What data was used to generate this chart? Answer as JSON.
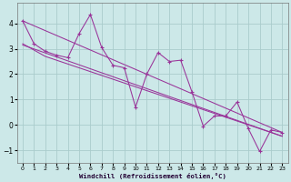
{
  "xlabel": "Windchill (Refroidissement éolien,°C)",
  "bg_color": "#cce8e8",
  "grid_color": "#aacccc",
  "line_color": "#993399",
  "xlim": [
    -0.5,
    23.5
  ],
  "ylim": [
    -1.5,
    4.8
  ],
  "xticks": [
    0,
    1,
    2,
    3,
    4,
    5,
    6,
    7,
    8,
    9,
    10,
    11,
    12,
    13,
    14,
    15,
    16,
    17,
    18,
    19,
    20,
    21,
    22,
    23
  ],
  "yticks": [
    -1,
    0,
    1,
    2,
    3,
    4
  ],
  "series1_x": [
    0,
    1,
    2,
    3,
    4,
    5,
    6,
    7,
    8,
    9,
    10,
    11,
    12,
    13,
    14,
    15,
    16,
    17,
    18,
    19,
    20,
    21,
    22,
    23
  ],
  "series1_y": [
    4.1,
    3.2,
    2.9,
    2.75,
    2.65,
    3.6,
    4.35,
    3.05,
    2.35,
    2.25,
    0.7,
    2.0,
    2.85,
    2.5,
    2.55,
    1.3,
    -0.05,
    0.35,
    0.35,
    0.9,
    -0.15,
    -1.05,
    -0.2,
    -0.3
  ],
  "series2_x": [
    0,
    1,
    2,
    3,
    4,
    5,
    6,
    7,
    8,
    9,
    10,
    11,
    12,
    13,
    14,
    15,
    16,
    17,
    18,
    19,
    20,
    21,
    22,
    23
  ],
  "series2_y": [
    3.2,
    2.95,
    2.7,
    2.55,
    2.4,
    2.25,
    2.1,
    1.95,
    1.8,
    1.65,
    1.5,
    1.35,
    1.2,
    1.05,
    0.9,
    0.75,
    0.6,
    0.45,
    0.3,
    0.15,
    0.0,
    -0.15,
    -0.3,
    -0.45
  ],
  "series3_x": [
    0,
    23
  ],
  "series3_y": [
    3.15,
    -0.45
  ]
}
